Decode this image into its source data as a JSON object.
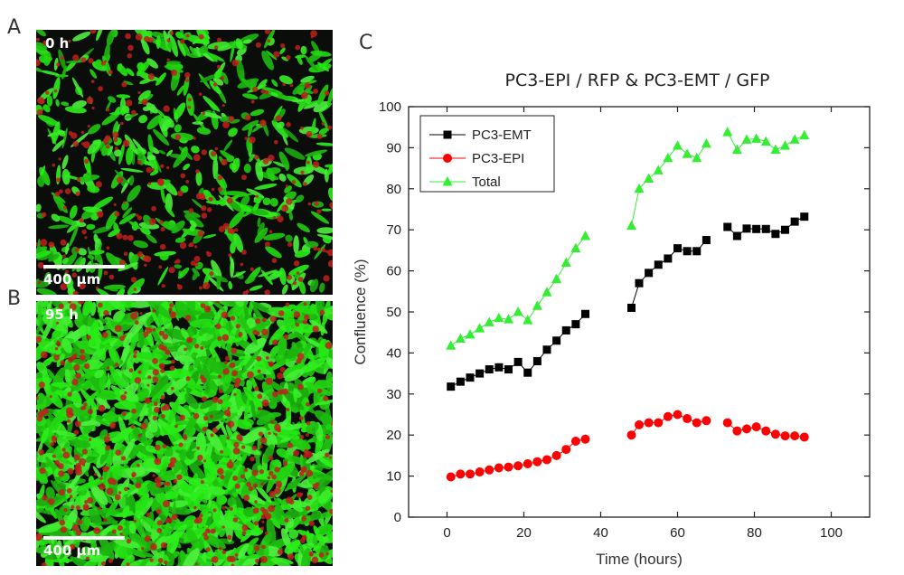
{
  "panels": {
    "a": {
      "letter": "A",
      "time": "0 h",
      "scale": "400 µm"
    },
    "b": {
      "letter": "B",
      "time": "95 h",
      "scale": "400 µm"
    },
    "c": {
      "letter": "C"
    }
  },
  "colors": {
    "emt": "#000000",
    "epi": "#ff0000",
    "total": "#33ee33",
    "green_cell": "#22cc22",
    "red_cell": "#c0201c"
  },
  "chart_data": {
    "type": "scatter",
    "title": "PC3-EPI / RFP & PC3-EMT / GFP",
    "xlabel": "Time (hours)",
    "ylabel": "Confluence (%)",
    "xlim": [
      -10,
      110
    ],
    "ylim": [
      0,
      100
    ],
    "xticks": [
      0,
      20,
      40,
      60,
      80,
      100
    ],
    "yticks": [
      0,
      10,
      20,
      30,
      40,
      50,
      60,
      70,
      80,
      90,
      100
    ],
    "legend_position": "top-left",
    "series": [
      {
        "name": "PC3-EMT",
        "marker": "square",
        "color": "#000000",
        "segments": [
          [
            [
              1,
              31.8
            ],
            [
              3.5,
              33
            ],
            [
              6,
              34
            ],
            [
              8.5,
              35
            ],
            [
              11,
              36
            ],
            [
              13.5,
              36.5
            ],
            [
              16,
              36
            ],
            [
              18.5,
              37.8
            ],
            [
              21,
              35.2
            ],
            [
              23.5,
              38
            ],
            [
              26,
              40.8
            ],
            [
              28.5,
              43
            ],
            [
              31,
              45.5
            ],
            [
              33.5,
              47
            ],
            [
              36,
              49.5
            ]
          ],
          [
            [
              48,
              51
            ],
            [
              50,
              57
            ],
            [
              52.5,
              59.5
            ],
            [
              55,
              61.5
            ],
            [
              57.5,
              63
            ],
            [
              60,
              65.5
            ],
            [
              62.5,
              64.8
            ],
            [
              65,
              64.8
            ],
            [
              67.5,
              67.5
            ]
          ],
          [
            [
              73,
              70.7
            ],
            [
              75.5,
              68.5
            ],
            [
              78,
              70.3
            ],
            [
              80.5,
              70.2
            ],
            [
              83,
              70.2
            ],
            [
              85.5,
              69
            ],
            [
              88,
              70
            ],
            [
              90.5,
              72
            ],
            [
              93,
              73.2
            ]
          ]
        ]
      },
      {
        "name": "PC3-EPI",
        "marker": "circle",
        "color": "#ff0000",
        "segments": [
          [
            [
              1,
              9.8
            ],
            [
              3.5,
              10.5
            ],
            [
              6,
              10.5
            ],
            [
              8.5,
              11
            ],
            [
              11,
              11.5
            ],
            [
              13.5,
              12
            ],
            [
              16,
              12.2
            ],
            [
              18.5,
              12.5
            ],
            [
              21,
              13
            ],
            [
              23.5,
              13.5
            ],
            [
              26,
              14
            ],
            [
              28.5,
              15
            ],
            [
              31,
              16.5
            ],
            [
              33.5,
              18.5
            ],
            [
              36,
              19
            ]
          ],
          [
            [
              48,
              20
            ],
            [
              50,
              22.5
            ],
            [
              52.5,
              23
            ],
            [
              55,
              23
            ],
            [
              57.5,
              24.5
            ],
            [
              60,
              25
            ],
            [
              62.5,
              24
            ],
            [
              65,
              23
            ],
            [
              67.5,
              23.5
            ]
          ],
          [
            [
              73,
              23
            ],
            [
              75.5,
              21
            ],
            [
              78,
              21.5
            ],
            [
              80.5,
              22
            ],
            [
              83,
              21
            ],
            [
              85.5,
              20.2
            ],
            [
              88,
              19.8
            ],
            [
              90.5,
              19.8
            ],
            [
              93,
              19.5
            ]
          ]
        ]
      },
      {
        "name": "Total",
        "marker": "triangle",
        "color": "#33ee33",
        "segments": [
          [
            [
              1,
              41.8
            ],
            [
              3.5,
              43.5
            ],
            [
              6,
              44.5
            ],
            [
              8.5,
              46
            ],
            [
              11,
              47.5
            ],
            [
              13.5,
              48.5
            ],
            [
              16,
              48.2
            ],
            [
              18.5,
              50
            ],
            [
              21,
              48
            ],
            [
              23.5,
              51.5
            ],
            [
              26,
              54.8
            ],
            [
              28.5,
              58
            ],
            [
              31,
              62
            ],
            [
              33.5,
              65.5
            ],
            [
              36,
              68.5
            ]
          ],
          [
            [
              48,
              71
            ],
            [
              50,
              80
            ],
            [
              52.5,
              82.5
            ],
            [
              55,
              84.5
            ],
            [
              57.5,
              87.5
            ],
            [
              60,
              90.5
            ],
            [
              62.5,
              88.5
            ],
            [
              65,
              87.5
            ],
            [
              67.5,
              91
            ]
          ],
          [
            [
              73,
              93.8
            ],
            [
              75.5,
              89.5
            ],
            [
              78,
              92
            ],
            [
              80.5,
              92.2
            ],
            [
              83,
              91.5
            ],
            [
              85.5,
              89.5
            ],
            [
              88,
              90.5
            ],
            [
              90.5,
              92
            ],
            [
              93,
              93
            ]
          ]
        ]
      }
    ]
  }
}
